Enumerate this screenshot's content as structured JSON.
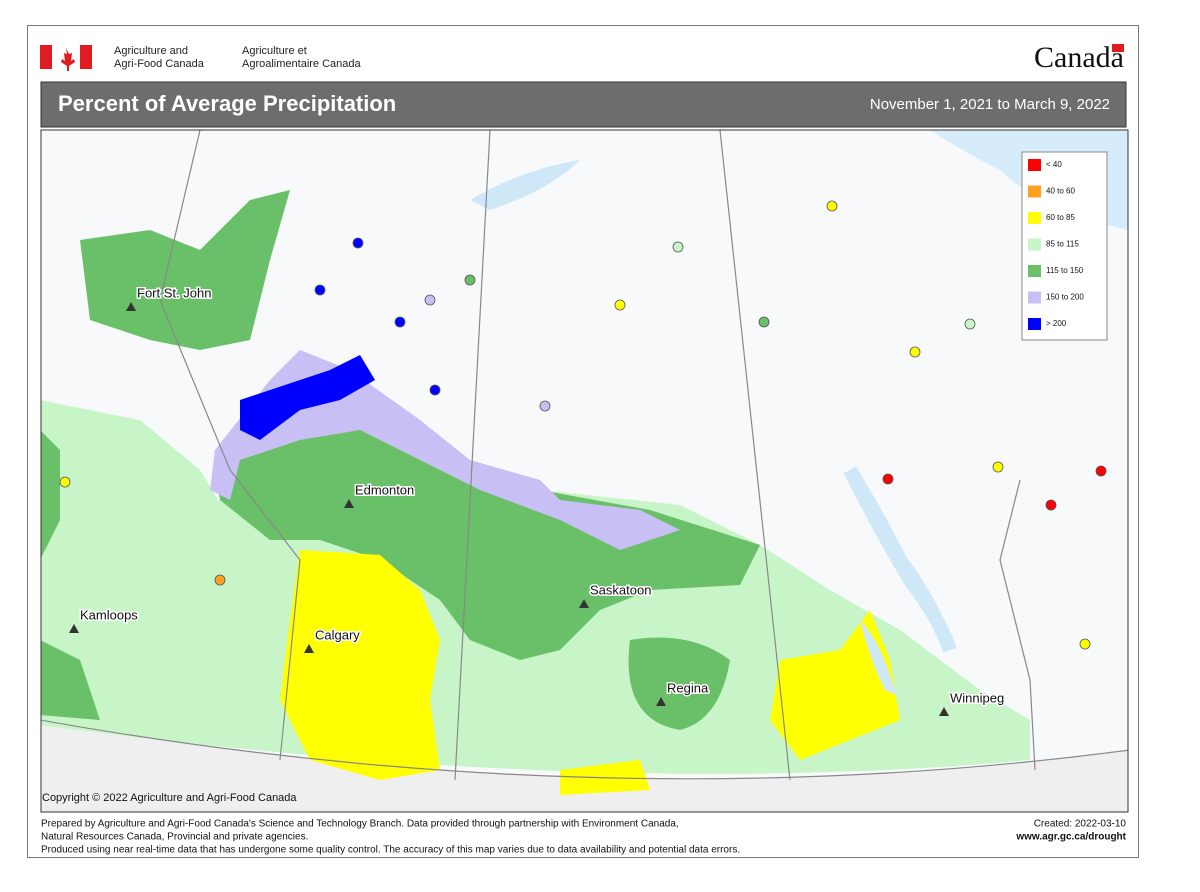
{
  "header": {
    "department_en": [
      "Agriculture and",
      "Agri-Food Canada"
    ],
    "department_fr": [
      "Agriculture et",
      "Agroalimentaire Canada"
    ],
    "wordmark": "Canada"
  },
  "title": "Percent of Average Precipitation",
  "date_range": "November 1, 2021 to March 9, 2022",
  "legend": [
    {
      "label": "< 40",
      "color": "#ff0000"
    },
    {
      "label": "40 to 60",
      "color": "#ffa020"
    },
    {
      "label": "60 to 85",
      "color": "#ffff00"
    },
    {
      "label": "85 to 115",
      "color": "#c8f5c8"
    },
    {
      "label": "115 to 150",
      "color": "#6abf69"
    },
    {
      "label": "150 to 200",
      "color": "#c8c0f5"
    },
    {
      "label": "> 200",
      "color": "#0000ff"
    }
  ],
  "places": [
    {
      "label": "Fort St. John"
    },
    {
      "label": "Edmonton"
    },
    {
      "label": "Saskatoon"
    },
    {
      "label": "Kamloops"
    },
    {
      "label": "Calgary"
    },
    {
      "label": "Regina"
    },
    {
      "label": "Winnipeg"
    }
  ],
  "copyright": "Copyright © 2022 Agriculture and Agri-Food Canada",
  "footer": {
    "credits": [
      "Prepared by Agriculture and Agri-Food Canada's Science and Technology Branch. Data provided through partnership with Environment Canada,",
      "Natural Resources Canada, Provincial and private agencies.",
      "Produced using near real-time data that has undergone some quality control. The accuracy of this map varies due to data availability and potential data errors."
    ],
    "created": "Created: 2022-03-10",
    "url": "www.agr.gc.ca/drought"
  }
}
